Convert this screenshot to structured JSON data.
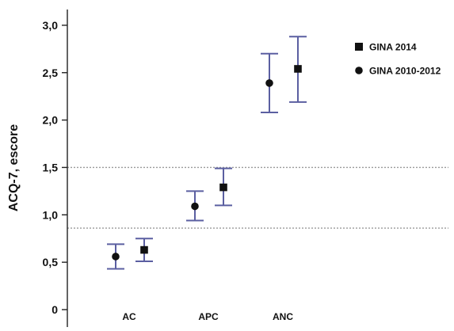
{
  "chart_data": {
    "type": "scatter",
    "title": "",
    "xlabel": "",
    "ylabel": "ACQ-7, escore",
    "categories": [
      "AC",
      "APC",
      "ANC"
    ],
    "ylim": [
      0,
      3.1
    ],
    "yticks": [
      0,
      0.5,
      1.0,
      1.5,
      2.0,
      2.5,
      3.0
    ],
    "ytick_labels": [
      "0",
      "0,5",
      "1,0",
      "1,5",
      "2,0",
      "2,5",
      "3,0"
    ],
    "reference_lines": [
      0.86,
      1.5
    ],
    "grid": false,
    "legend_position": "top-right",
    "series": [
      {
        "name": "GINA 2010-2012",
        "marker": "circle",
        "values": [
          0.56,
          1.09,
          2.39
        ],
        "lower": [
          0.43,
          0.94,
          2.08
        ],
        "upper": [
          0.69,
          1.25,
          2.7
        ]
      },
      {
        "name": "GINA 2014",
        "marker": "square",
        "values": [
          0.63,
          1.29,
          2.54
        ],
        "lower": [
          0.51,
          1.1,
          2.19
        ],
        "upper": [
          0.75,
          1.49,
          2.88
        ]
      }
    ],
    "colors": {
      "errorbar": "#5b5fa1",
      "marker": "#111111",
      "axis": "#222222",
      "reference_line": "#9a9a9a"
    }
  }
}
